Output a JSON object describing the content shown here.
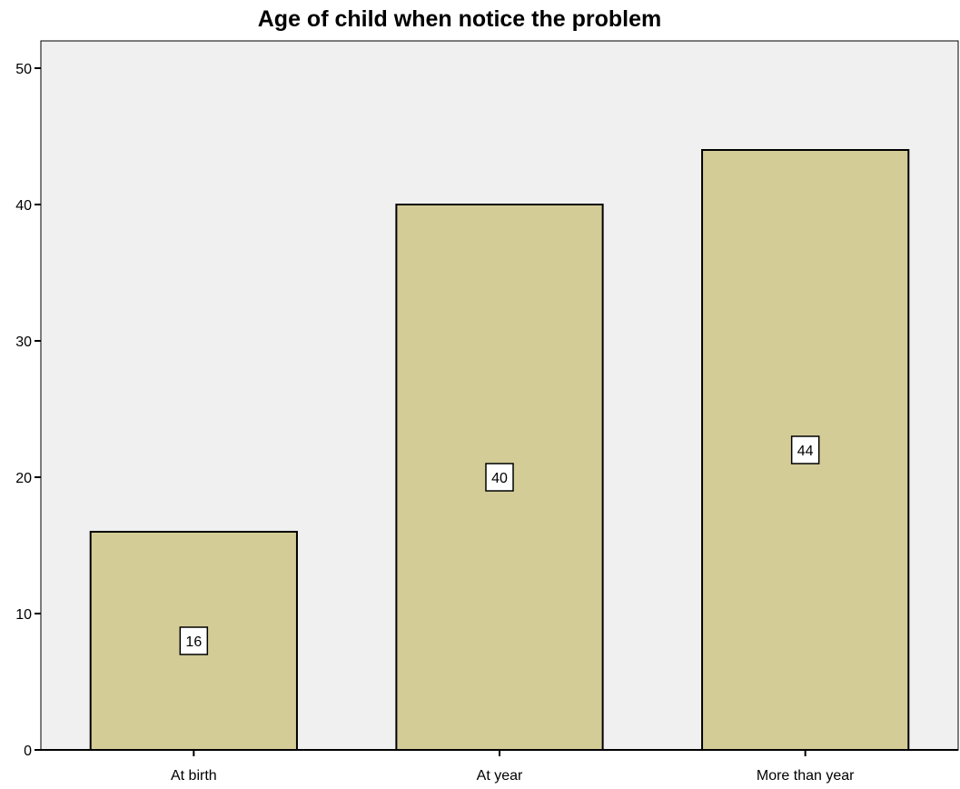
{
  "chart_data": {
    "type": "bar",
    "title": "Age of child when notice the problem",
    "xlabel": "",
    "ylabel": "",
    "categories": [
      "At birth",
      "At year",
      "More than year"
    ],
    "values": [
      16,
      40,
      44
    ],
    "data_labels": [
      "16",
      "40",
      "44"
    ],
    "ylim": [
      0,
      52
    ],
    "yticks": [
      0,
      10,
      20,
      30,
      40,
      50
    ],
    "ytick_labels": [
      "0",
      "10",
      "20",
      "30",
      "40",
      "50"
    ],
    "grid": false,
    "legend": "none",
    "colors": {
      "bar_fill": "#d3cc97",
      "bar_stroke": "#000000",
      "plot_background": "#f0f0f0",
      "axis": "#000000",
      "label_box_fill": "#ffffff"
    }
  }
}
